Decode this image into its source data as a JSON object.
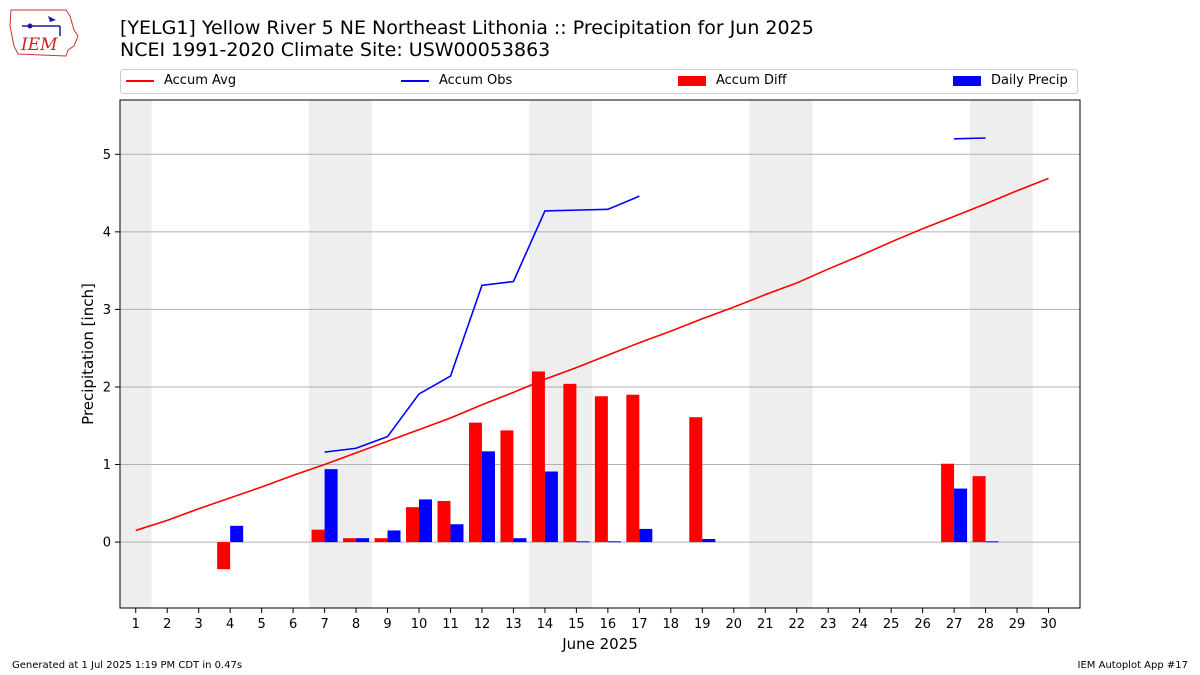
{
  "header": {
    "logo_text": "IEM",
    "title_line1": "[YELG1] Yellow River 5 NE Northeast Lithonia :: Precipitation for Jun 2025",
    "title_line2": "NCEI 1991-2020 Climate Site: USW00053863"
  },
  "legend": [
    {
      "label": "Accum Avg",
      "kind": "line",
      "color": "#ff0000"
    },
    {
      "label": "Accum Obs",
      "kind": "line",
      "color": "#0000ff"
    },
    {
      "label": "Accum Diff",
      "kind": "bar",
      "color": "#ff0000"
    },
    {
      "label": "Daily Precip",
      "kind": "bar",
      "color": "#0000ff"
    }
  ],
  "footer": {
    "left": "Generated at 1 Jul 2025 1:19 PM CDT in 0.47s",
    "right": "IEM Autoplot App #17"
  },
  "chart_data": {
    "type": "bar",
    "xlabel": "June 2025",
    "ylabel": "Precipitation [inch]",
    "xlim": [
      0.5,
      31
    ],
    "ylim": [
      -0.85,
      5.7
    ],
    "yticks": [
      0,
      1,
      2,
      3,
      4,
      5
    ],
    "grid": "horizontal",
    "weekend_shading_days": [
      [
        1,
        1
      ],
      [
        7,
        8
      ],
      [
        14,
        15
      ],
      [
        21,
        22
      ],
      [
        28,
        29
      ]
    ],
    "days": [
      1,
      2,
      3,
      4,
      5,
      6,
      7,
      8,
      9,
      10,
      11,
      12,
      13,
      14,
      15,
      16,
      17,
      18,
      19,
      20,
      21,
      22,
      23,
      24,
      25,
      26,
      27,
      28,
      29,
      30
    ],
    "accum_avg": [
      0.15,
      0.28,
      0.43,
      0.57,
      0.71,
      0.86,
      1.0,
      1.15,
      1.3,
      1.45,
      1.6,
      1.77,
      1.93,
      2.1,
      2.25,
      2.41,
      2.57,
      2.72,
      2.88,
      3.03,
      3.19,
      3.34,
      3.52,
      3.69,
      3.87,
      4.04,
      4.2,
      4.36,
      4.53,
      4.69
    ],
    "accum_obs": [
      null,
      null,
      null,
      null,
      null,
      null,
      1.16,
      1.21,
      1.36,
      1.91,
      2.14,
      3.31,
      3.36,
      4.27,
      4.28,
      4.29,
      4.46,
      null,
      null,
      null,
      null,
      null,
      null,
      null,
      null,
      null,
      5.2,
      5.21,
      null,
      null
    ],
    "accum_diff": [
      null,
      null,
      null,
      -0.35,
      null,
      null,
      0.16,
      0.05,
      0.05,
      0.45,
      0.53,
      1.54,
      1.44,
      2.2,
      2.04,
      1.88,
      1.9,
      null,
      1.61,
      null,
      null,
      null,
      null,
      null,
      null,
      null,
      1.01,
      0.85,
      null,
      null
    ],
    "daily_precip": [
      null,
      null,
      null,
      0.21,
      null,
      null,
      0.94,
      0.05,
      0.15,
      0.55,
      0.23,
      1.17,
      0.05,
      0.91,
      0.01,
      0.01,
      0.17,
      null,
      0.04,
      null,
      null,
      null,
      null,
      null,
      null,
      null,
      0.69,
      0.01,
      null,
      null
    ],
    "colors": {
      "avg": "#ff0000",
      "obs": "#0000ff",
      "diff": "#ff0000",
      "precip": "#0000ff",
      "shade": "#eeeeee",
      "grid": "#b0b0b0"
    }
  }
}
